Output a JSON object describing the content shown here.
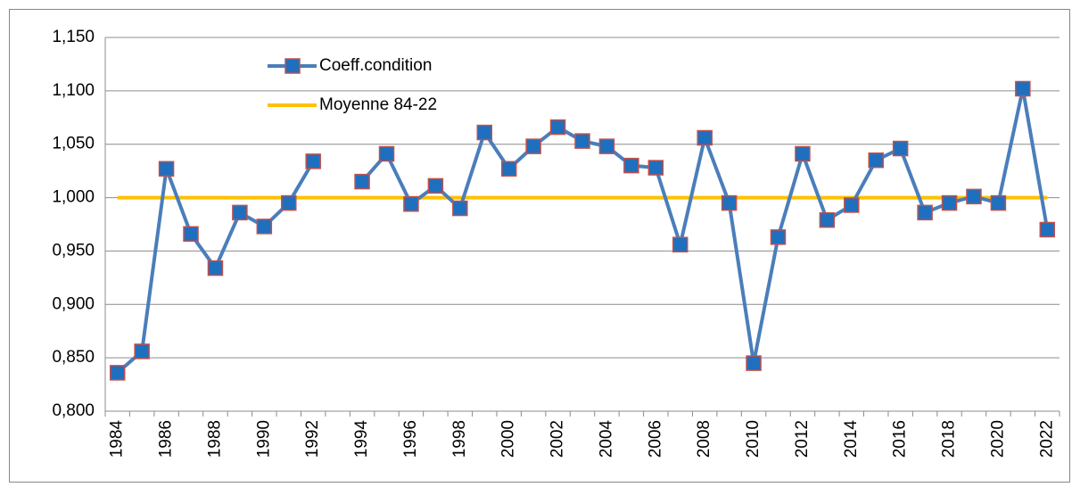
{
  "chart_data": {
    "type": "line",
    "categories": [
      "1984",
      null,
      "1986",
      null,
      "1988",
      null,
      "1990",
      null,
      "1992",
      null,
      "1994",
      null,
      "1996",
      null,
      "1998",
      null,
      "2000",
      null,
      "2002",
      null,
      "2004",
      null,
      "2006",
      null,
      "2008",
      null,
      "2010",
      null,
      "2012",
      null,
      "2014",
      null,
      "2016",
      null,
      "2018",
      null,
      "2020",
      null,
      "2022"
    ],
    "series": [
      {
        "name": "Coeff.condition",
        "color": "#4a7ebb",
        "marker_color": "#1f6fbf",
        "marker_edge": "#c0504d",
        "values": [
          0.836,
          0.856,
          1.027,
          0.966,
          0.934,
          0.986,
          0.973,
          0.995,
          1.034,
          null,
          1.015,
          1.041,
          0.994,
          1.011,
          0.99,
          1.061,
          1.027,
          1.048,
          1.066,
          1.053,
          1.048,
          1.03,
          1.028,
          0.956,
          1.056,
          0.995,
          0.845,
          0.963,
          1.041,
          0.979,
          0.993,
          1.035,
          1.046,
          0.986,
          0.995,
          1.001,
          0.995,
          1.102,
          0.97
        ]
      },
      {
        "name": "Moyenne 84-22",
        "color": "#ffc000",
        "values": [
          1,
          1,
          1,
          1,
          1,
          1,
          1,
          1,
          1,
          1,
          1,
          1,
          1,
          1,
          1,
          1,
          1,
          1,
          1,
          1,
          1,
          1,
          1,
          1,
          1,
          1,
          1,
          1,
          1,
          1,
          1,
          1,
          1,
          1,
          1,
          1,
          1,
          1,
          1
        ]
      }
    ],
    "ylim": [
      0.8,
      1.15
    ],
    "yticks": [
      {
        "value": 0.8,
        "label": "0,800"
      },
      {
        "value": 0.85,
        "label": "0,850"
      },
      {
        "value": 0.9,
        "label": "0,900"
      },
      {
        "value": 0.95,
        "label": "0,950"
      },
      {
        "value": 1.0,
        "label": "1,000"
      },
      {
        "value": 1.05,
        "label": "1,050"
      },
      {
        "value": 1.1,
        "label": "1,100"
      },
      {
        "value": 1.15,
        "label": "1,150"
      }
    ],
    "grid": true
  }
}
